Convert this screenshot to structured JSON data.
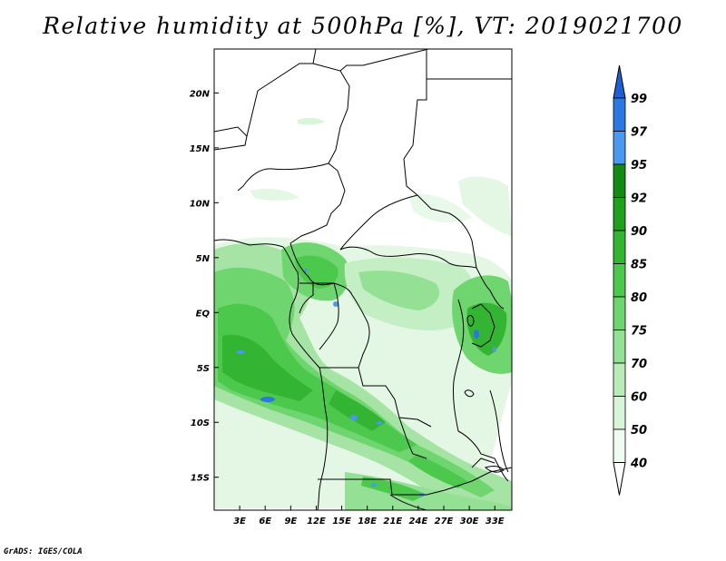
{
  "title": "Relative humidity at 500hPa [%], VT: 2019021700",
  "credit": "GrADS: IGES/COLA",
  "map": {
    "x_axis": {
      "ticks": [
        3,
        6,
        9,
        12,
        15,
        18,
        21,
        24,
        27,
        30,
        33
      ],
      "labels": [
        "3E",
        "6E",
        "9E",
        "12E",
        "15E",
        "18E",
        "21E",
        "24E",
        "27E",
        "30E",
        "33E"
      ],
      "range": [
        0,
        35
      ]
    },
    "y_axis": {
      "ticks": [
        20,
        15,
        10,
        5,
        0,
        -5,
        -10,
        -15
      ],
      "labels": [
        "20N",
        "15N",
        "10N",
        "5N",
        "EQ",
        "5S",
        "10S",
        "15S"
      ],
      "range": [
        -18,
        24
      ]
    }
  },
  "colorbar": {
    "labels": [
      "99",
      "97",
      "95",
      "92",
      "90",
      "85",
      "80",
      "75",
      "70",
      "60",
      "50",
      "40"
    ],
    "colors": [
      "#1f5fd6",
      "#2b78e4",
      "#4a98ef",
      "#138a13",
      "#1fa01f",
      "#33b533",
      "#4cc94c",
      "#6fd56f",
      "#94e094",
      "#b9ebb9",
      "#d9f5d9",
      "#f1fcf1"
    ]
  }
}
